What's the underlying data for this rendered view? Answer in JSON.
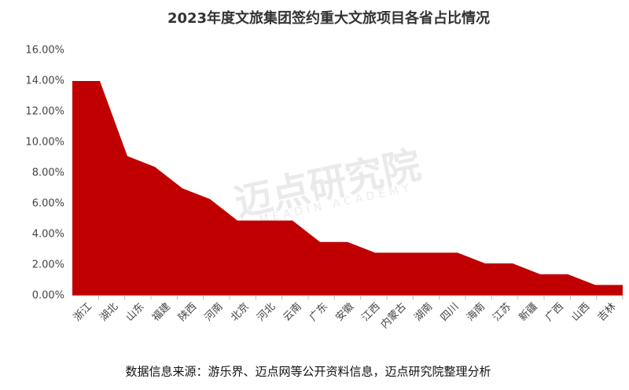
{
  "chart_data": {
    "type": "area",
    "title": "2023年度文旅集团签约重大文旅项目各省占比情况",
    "categories": [
      "浙江",
      "湖北",
      "山东",
      "福建",
      "陕西",
      "河南",
      "北京",
      "河北",
      "云南",
      "广东",
      "安徽",
      "江西",
      "内蒙古",
      "湖南",
      "四川",
      "海南",
      "江苏",
      "新疆",
      "广西",
      "山西",
      "吉林"
    ],
    "values": [
      14.0,
      14.0,
      9.1,
      8.4,
      7.0,
      6.3,
      4.9,
      4.9,
      4.9,
      3.5,
      3.5,
      2.8,
      2.8,
      2.8,
      2.8,
      2.1,
      2.1,
      1.4,
      1.4,
      0.7,
      0.7
    ],
    "color": "#c00000",
    "ylim": [
      0,
      16
    ],
    "yticks": [
      {
        "value": 0,
        "label": "0.00%"
      },
      {
        "value": 2,
        "label": "2.00%"
      },
      {
        "value": 4,
        "label": "4.00%"
      },
      {
        "value": 6,
        "label": "6.00%"
      },
      {
        "value": 8,
        "label": "8.00%"
      },
      {
        "value": 10,
        "label": "10.00%"
      },
      {
        "value": 12,
        "label": "12.00%"
      },
      {
        "value": 14,
        "label": "14.00%"
      },
      {
        "value": 16,
        "label": "16.00%"
      }
    ],
    "watermark": "迈点研究院",
    "watermark_sub": "MEADIN ACADEMY",
    "source": "数据信息来源：游乐界、迈点网等公开资料信息，迈点研究院整理分析"
  }
}
